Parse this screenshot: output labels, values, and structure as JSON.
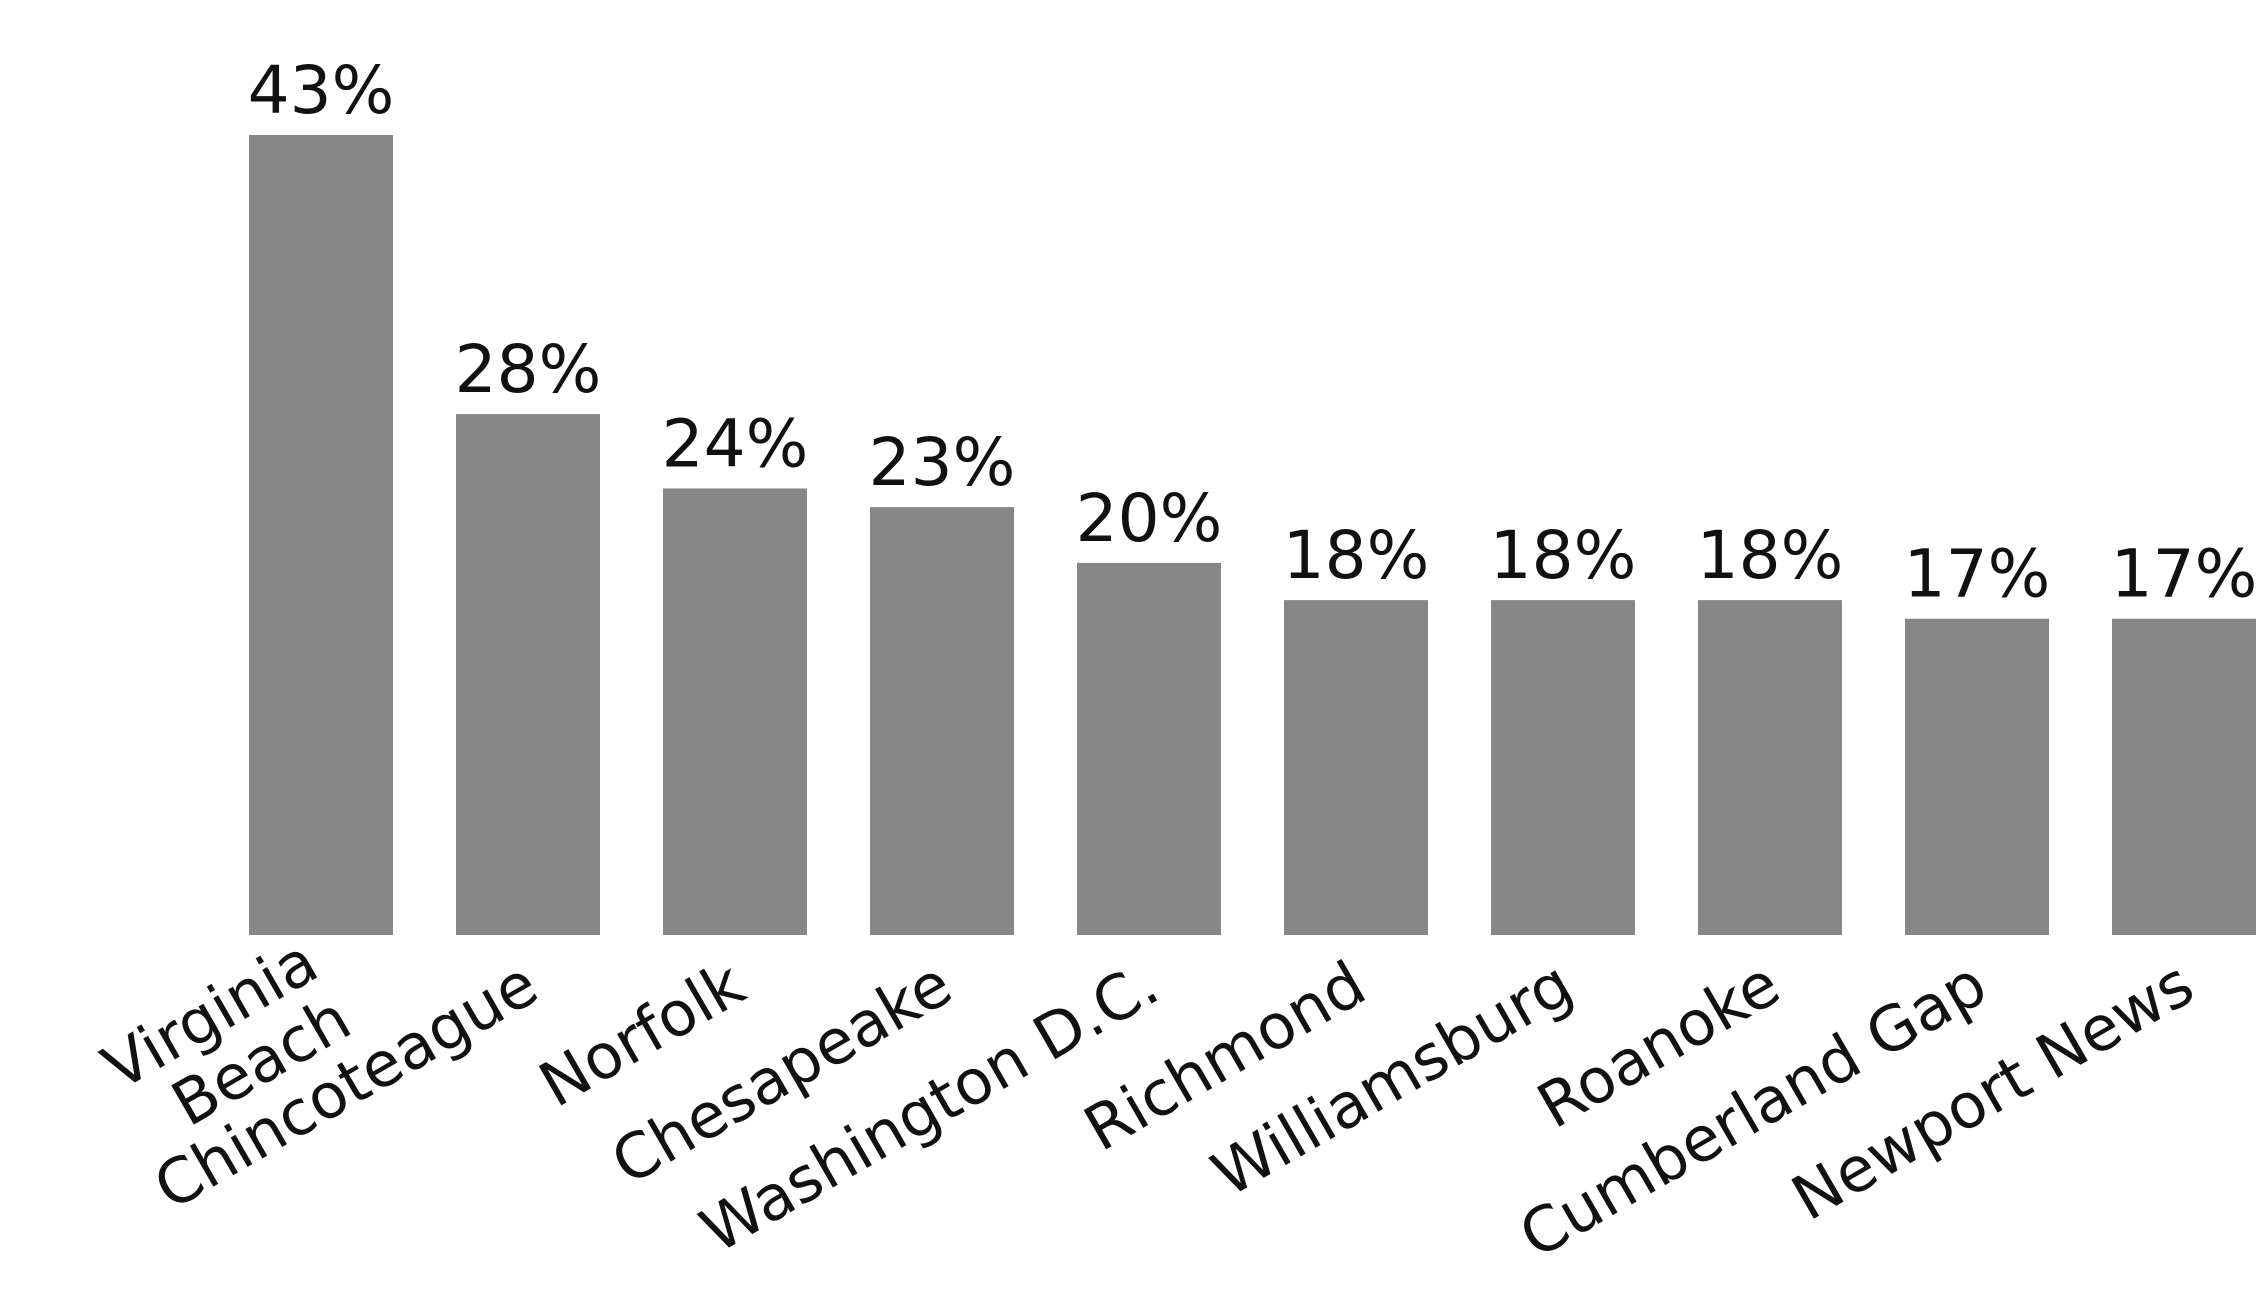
{
  "chart_data": {
    "type": "bar",
    "categories": [
      "Virginia Beach",
      "Chincoteague",
      "Norfolk",
      "Chesapeake",
      "Washington D.C.",
      "Richmond",
      "Williamsburg",
      "Roanoke",
      "Cumberland Gap",
      "Newport News"
    ],
    "values": [
      43,
      28,
      24,
      23,
      20,
      18,
      18,
      18,
      17,
      17
    ],
    "value_labels": [
      "43%",
      "28%",
      "24%",
      "23%",
      "20%",
      "18%",
      "18%",
      "18%",
      "17%",
      "17%"
    ],
    "color": "#878787"
  }
}
